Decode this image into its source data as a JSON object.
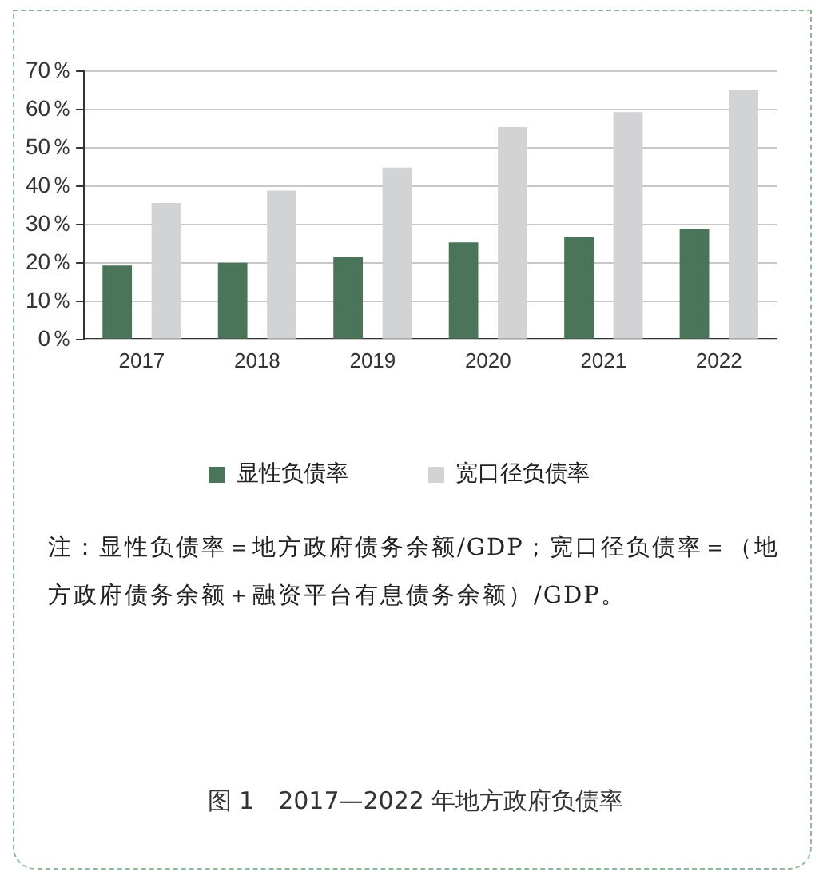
{
  "chart_data": {
    "type": "bar",
    "title": "图 1　2017—2022 年地方政府负债率",
    "categories": [
      "2017",
      "2018",
      "2019",
      "2020",
      "2021",
      "2022"
    ],
    "series": [
      {
        "name": "显性负债率",
        "color": "#4a7559",
        "values": [
          19.3,
          20.0,
          21.4,
          25.3,
          26.7,
          28.8
        ]
      },
      {
        "name": "宽口径负债率",
        "color": "#d2d3d5",
        "values": [
          35.6,
          38.8,
          44.8,
          55.4,
          59.3,
          65.0
        ]
      }
    ],
    "ylim": [
      0,
      70
    ],
    "yticks": [
      {
        "value": 0,
        "label": "0％"
      },
      {
        "value": 10,
        "label": "10％"
      },
      {
        "value": 20,
        "label": "20％"
      },
      {
        "value": 30,
        "label": "30％"
      },
      {
        "value": 40,
        "label": "40％"
      },
      {
        "value": 50,
        "label": "50％"
      },
      {
        "value": 60,
        "label": "60％"
      },
      {
        "value": 70,
        "label": "70％"
      }
    ],
    "grid": "y",
    "legend": "bottom",
    "annotations": [
      "注：显性负债率＝地方政府债务余额/GDP；宽口径负债率＝（地方政府债务余额＋融资平台有息债务余额）/GDP。"
    ]
  }
}
